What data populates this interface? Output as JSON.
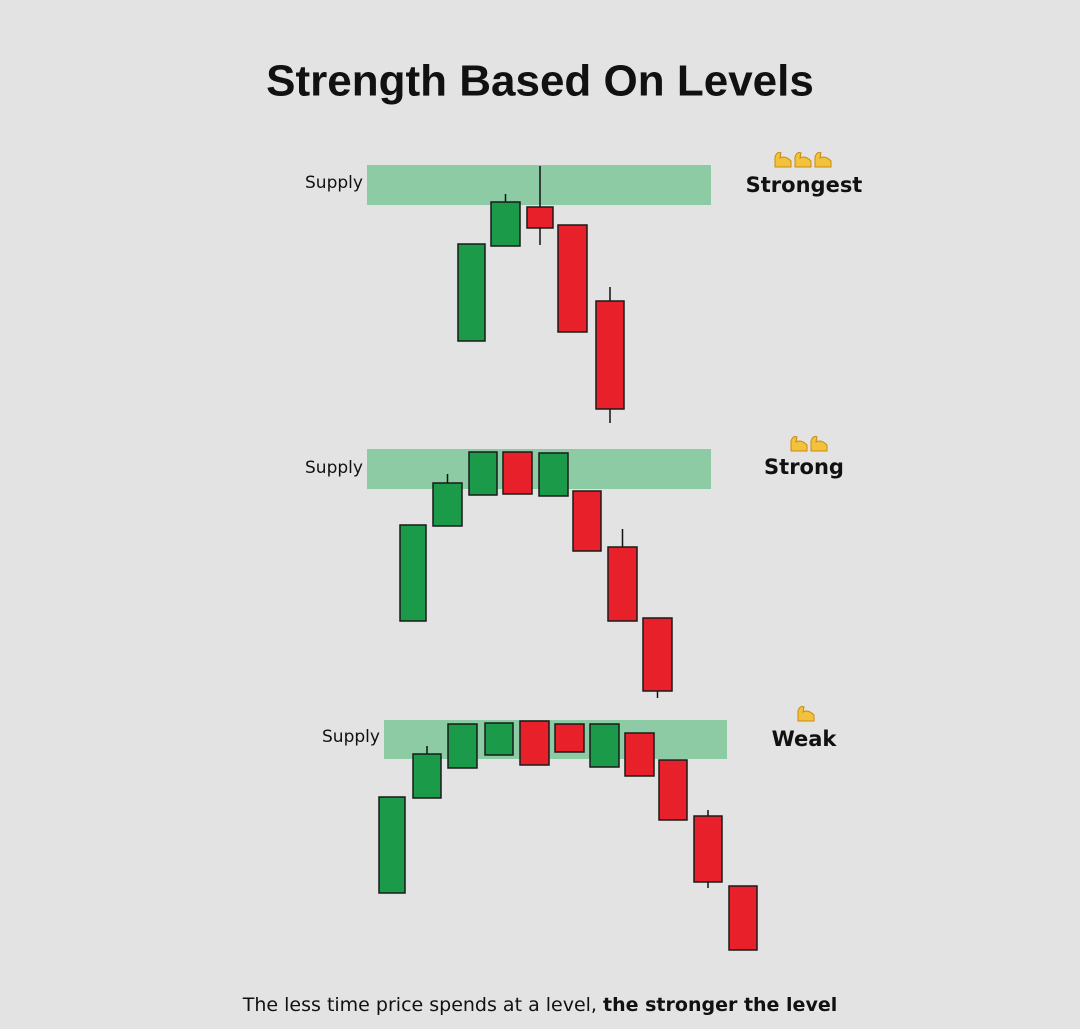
{
  "title": "Strength Based On Levels",
  "panels": [
    {
      "zone_label": "Supply",
      "rating": "Strongest"
    },
    {
      "zone_label": "Supply",
      "rating": "Strong"
    },
    {
      "zone_label": "Supply",
      "rating": "Weak"
    }
  ],
  "caption": {
    "normal": "The less time price spends at a level,",
    "bold": "the stronger the level"
  }
}
